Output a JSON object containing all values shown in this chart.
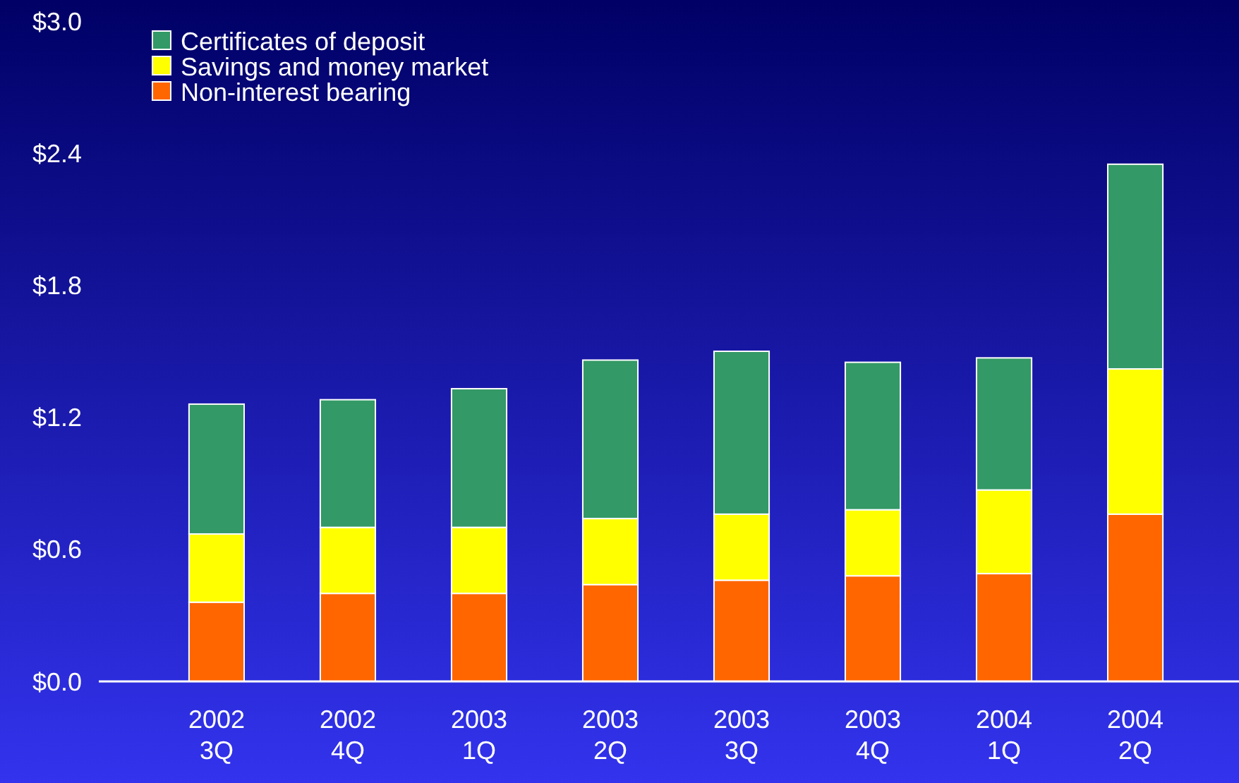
{
  "chart_data": {
    "type": "bar",
    "stacked": true,
    "legend": "top left",
    "grid": false,
    "categories": [
      "2002\n3Q",
      "2002\n4Q",
      "2003\n1Q",
      "2003\n2Q",
      "2003\n3Q",
      "2003\n4Q",
      "2004\n1Q",
      "2004\n2Q"
    ],
    "ylim": [
      0,
      3
    ],
    "yticks": [
      {
        "value": 0,
        "label": "$0.0"
      },
      {
        "value": 0.6,
        "label": "$0.6"
      },
      {
        "value": 1.2,
        "label": "$1.2"
      },
      {
        "value": 1.8,
        "label": "$1.8"
      },
      {
        "value": 2.4,
        "label": "$2.4"
      },
      {
        "value": 3,
        "label": "$3.0"
      }
    ],
    "series": [
      {
        "name": "Non-interest bearing",
        "color": "#ff6600",
        "values": [
          0.36,
          0.4,
          0.4,
          0.44,
          0.46,
          0.48,
          0.49,
          0.76
        ]
      },
      {
        "name": "Savings and money market",
        "color": "#ffff00",
        "values": [
          0.31,
          0.3,
          0.3,
          0.3,
          0.3,
          0.3,
          0.38,
          0.66
        ]
      },
      {
        "name": "Certificates of deposit",
        "color": "#339966",
        "values": [
          0.59,
          0.58,
          0.63,
          0.72,
          0.74,
          0.67,
          0.6,
          0.93
        ]
      }
    ]
  }
}
